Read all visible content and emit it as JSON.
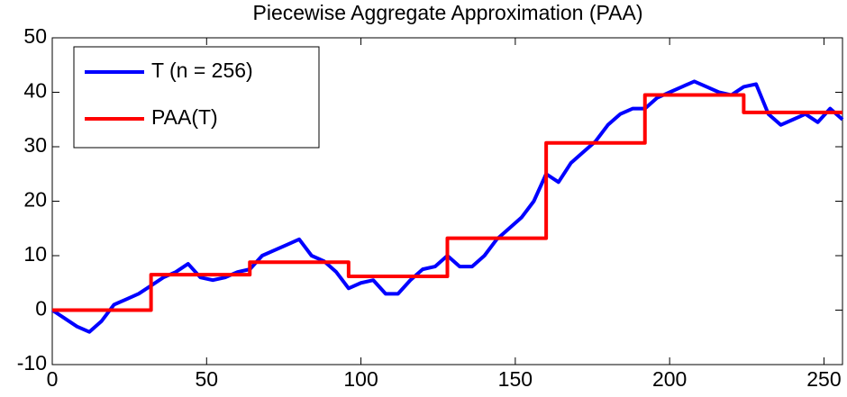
{
  "chart_data": {
    "type": "line",
    "title": "Piecewise Aggregate Approximation (PAA)",
    "xlim": [
      0,
      256
    ],
    "xticks": [
      0,
      50,
      100,
      150,
      200,
      250
    ],
    "ylim": [
      -10,
      50
    ],
    "yticks": [
      -10,
      0,
      10,
      20,
      30,
      40,
      50
    ],
    "legend": "upper left",
    "series": [
      {
        "name": "T (n = 256)",
        "color": "#0000ff",
        "x": [
          0,
          4,
          8,
          12,
          16,
          20,
          24,
          28,
          32,
          36,
          40,
          44,
          48,
          52,
          56,
          60,
          64,
          68,
          72,
          76,
          80,
          84,
          88,
          92,
          96,
          100,
          104,
          108,
          112,
          116,
          120,
          124,
          128,
          132,
          136,
          140,
          144,
          148,
          152,
          156,
          160,
          164,
          168,
          172,
          176,
          180,
          184,
          188,
          192,
          196,
          200,
          204,
          208,
          212,
          216,
          220,
          224,
          228,
          232,
          236,
          240,
          244,
          248,
          252,
          256
        ],
        "values": [
          0,
          -1.5,
          -3,
          -4,
          -2,
          1,
          2,
          3,
          4.5,
          6,
          7,
          8.5,
          6,
          5.5,
          6,
          7,
          7.5,
          10,
          11,
          12,
          13,
          10,
          9,
          7,
          4,
          5,
          5.5,
          3,
          3,
          5.5,
          7.5,
          8,
          10,
          8,
          8,
          10,
          13,
          15,
          17,
          20,
          25,
          23.5,
          27,
          29,
          31,
          34,
          36,
          37,
          37,
          39,
          40,
          41,
          42,
          41,
          40,
          39.5,
          41,
          41.5,
          36,
          34,
          35,
          36,
          34.5,
          37,
          35
        ]
      },
      {
        "name": "PAA(T)",
        "color": "#ff0000",
        "x": [
          0,
          32,
          32,
          64,
          64,
          96,
          96,
          128,
          128,
          160,
          160,
          192,
          192,
          224,
          224,
          256
        ],
        "values": [
          0,
          0,
          6.5,
          6.5,
          8.8,
          8.8,
          6.2,
          6.2,
          13.2,
          13.2,
          30.7,
          30.7,
          39.5,
          39.5,
          36.3,
          36.3
        ]
      }
    ]
  }
}
